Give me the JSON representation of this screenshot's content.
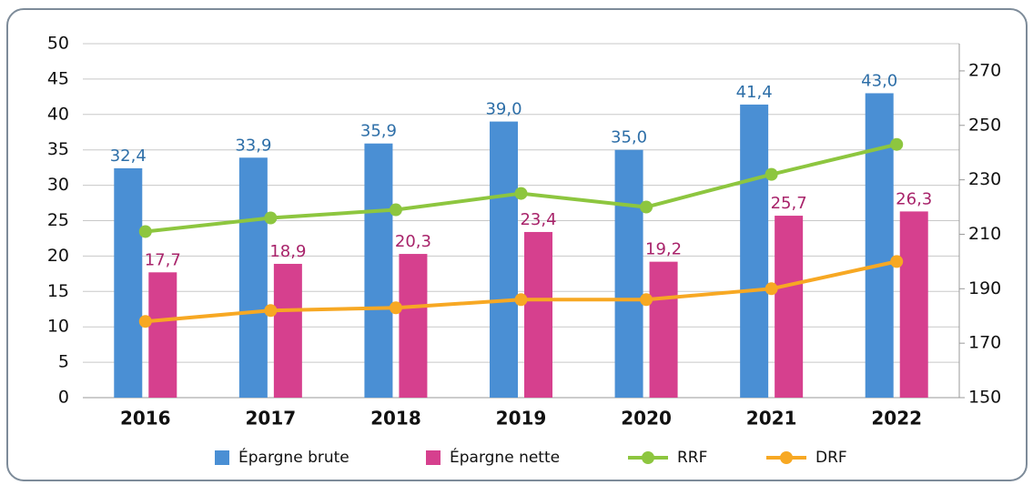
{
  "chart_data": {
    "type": "bar",
    "categories": [
      "2016",
      "2017",
      "2018",
      "2019",
      "2020",
      "2021",
      "2022"
    ],
    "series": [
      {
        "name": "Épargne brute",
        "type": "bar",
        "color": "#4a8fd4",
        "label_color": "#2e6fa8",
        "values": [
          32.4,
          33.9,
          35.9,
          39.0,
          35.0,
          41.4,
          43.0
        ],
        "value_labels": [
          "32,4",
          "33,9",
          "35,9",
          "39,0",
          "35,0",
          "41,4",
          "43,0"
        ]
      },
      {
        "name": "Épargne nette",
        "type": "bar",
        "color": "#d6408e",
        "label_color": "#a8236a",
        "values": [
          17.7,
          18.9,
          20.3,
          23.4,
          19.2,
          25.7,
          26.3
        ],
        "value_labels": [
          "17,7",
          "18,9",
          "20,3",
          "23,4",
          "19,2",
          "25,7",
          "26,3"
        ]
      },
      {
        "name": "RRF",
        "type": "line",
        "axis": "y2",
        "color": "#8dc63f",
        "values": [
          211,
          216,
          219,
          225,
          220,
          232,
          243
        ]
      },
      {
        "name": "DRF",
        "type": "line",
        "axis": "y2",
        "color": "#f7a823",
        "values": [
          178,
          182,
          183,
          186,
          186,
          190,
          200
        ]
      }
    ],
    "ylim": [
      0,
      50
    ],
    "yticks": [
      0,
      5,
      10,
      15,
      20,
      25,
      30,
      35,
      40,
      45,
      50
    ],
    "y2lim": [
      150,
      280
    ],
    "y2ticks": [
      150,
      170,
      190,
      210,
      230,
      250,
      270
    ],
    "grid": true,
    "legend": "bottom"
  }
}
